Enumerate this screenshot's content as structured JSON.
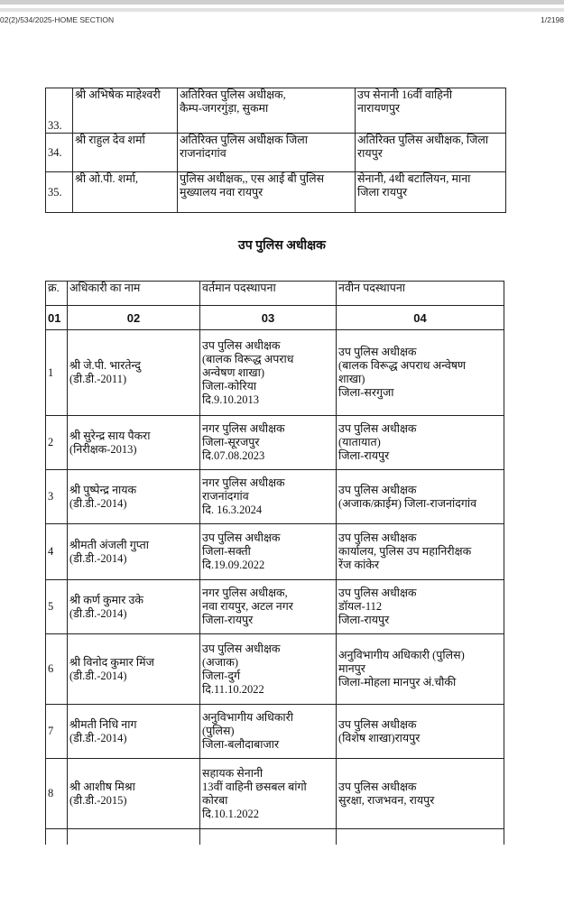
{
  "header": {
    "reference": "02(2)/534/2025-HOME SECTION",
    "page": "1/2198"
  },
  "table1": {
    "rows": [
      {
        "no": "33.",
        "name": "श्री अभिषेक माहेश्वरी",
        "current": "अतिरिक्त पुलिस अधीक्षक,\nकैम्प-जगरगुंड़ा, सुकमा",
        "new": "उप सेनानी 16वीं वाहिनी\nनारायणपुर"
      },
      {
        "no": "34.",
        "name": "श्री राहुल देव शर्मा",
        "current": "अतिरिक्त पुलिस अधीक्षक जिला\nराजनांदगांव",
        "new": "अतिरिक्त पुलिस अधीक्षक, जिला\nरायपुर"
      },
      {
        "no": "35.",
        "name": "श्री ओ.पी. शर्मा,",
        "current": "पुलिस अधीक्षक,, एस आई बी पुलिस\nमुख्यालय नवा रायपुर",
        "new": "सेनानी, 4थी बटालियन, माना\nजिला रायपुर"
      }
    ]
  },
  "section_heading": "उप पुलिस अधीक्षक",
  "table2": {
    "headers": [
      "क्र.",
      "अधिकारी का नाम",
      "वर्तमान पदस्थापना",
      "नवीन पदस्थापना"
    ],
    "column_numbers": [
      "01",
      "02",
      "03",
      "04"
    ],
    "rows": [
      {
        "no": "1",
        "name": "श्री जे.पी. भारतेन्दु\n(डी.डी.-2011)",
        "current": "उप पुलिस अधीक्षक\n(बालक विरूद्ध अपराध\nअन्वेषण शाखा)\nजिला-कोरिया\nदि.9.10.2013",
        "new": "उप पुलिस अधीक्षक\n(बालक विरूद्ध अपराध अन्वेषण\nशाखा)\nजिला-सरगुजा"
      },
      {
        "no": "2",
        "name": "श्री सुरेन्द्र साय पैकरा\n(निरीक्षक-2013)",
        "current": "नगर पुलिस अधीक्षक\nजिला-सूरजपुर\nदि.07.08.2023",
        "new": "उप पुलिस अधीक्षक\n(यातायात)\nजिला-रायपुर"
      },
      {
        "no": "3",
        "name": "श्री पुष्पेन्द्र नायक\n(डी.डी.-2014)",
        "current": "नगर पुलिस अधीक्षक\nराजनांदगांव\nदि. 16.3.2024",
        "new": "उप पुलिस अधीक्षक\n(अजाक/क्राईम) जिला-राजनांदगांव"
      },
      {
        "no": "4",
        "name": "श्रीमती अंजली गुप्ता\n(डी.डी.-2014)",
        "current": "उप पुलिस अधीक्षक\nजिला-सक्ती\nदि.19.09.2022",
        "new": "उप पुलिस अधीक्षक\nकार्यालय, पुलिस उप महानिरीक्षक\nरेंज कांकेर"
      },
      {
        "no": "5",
        "name": "श्री कर्ण कुमार उके\n(डी.डी.-2014)",
        "current": "नगर पुलिस अधीक्षक,\nनवा रायपुर, अटल नगर\nजिला-रायपुर",
        "new": "उप पुलिस अधीक्षक\nडॉयल-112\nजिला-रायपुर"
      },
      {
        "no": "6",
        "name": "श्री विनोद कुमार मिंज\n(डी.डी.-2014)",
        "current": "उप पुलिस अधीक्षक\n(अजाक)\nजिला-दुर्ग\nदि.11.10.2022",
        "new": "अनुविभागीय अधिकारी (पुलिस)\nमानपुर\nजिला-मोहला मानपुर अं.चौकी"
      },
      {
        "no": "7",
        "name": "श्रीमती निधि नाग\n(डी.डी.-2014)",
        "current": "अनुविभागीय अधिकारी\n(पुलिस)\nजिला-बलौदाबाजार",
        "new": "उप पुलिस अधीक्षक\n(विशेष शाखा)रायपुर"
      },
      {
        "no": "8",
        "name": "श्री आशीष मिश्रा\n(डी.डी.-2015)",
        "current": "सहायक सेनानी\n13वीं वाहिनी छसबल बांगो\nकोरबा\nदि.10.1.2022",
        "new": "उप पुलिस अधीक्षक\nसुरक्षा, राजभवन, रायपुर"
      }
    ]
  }
}
